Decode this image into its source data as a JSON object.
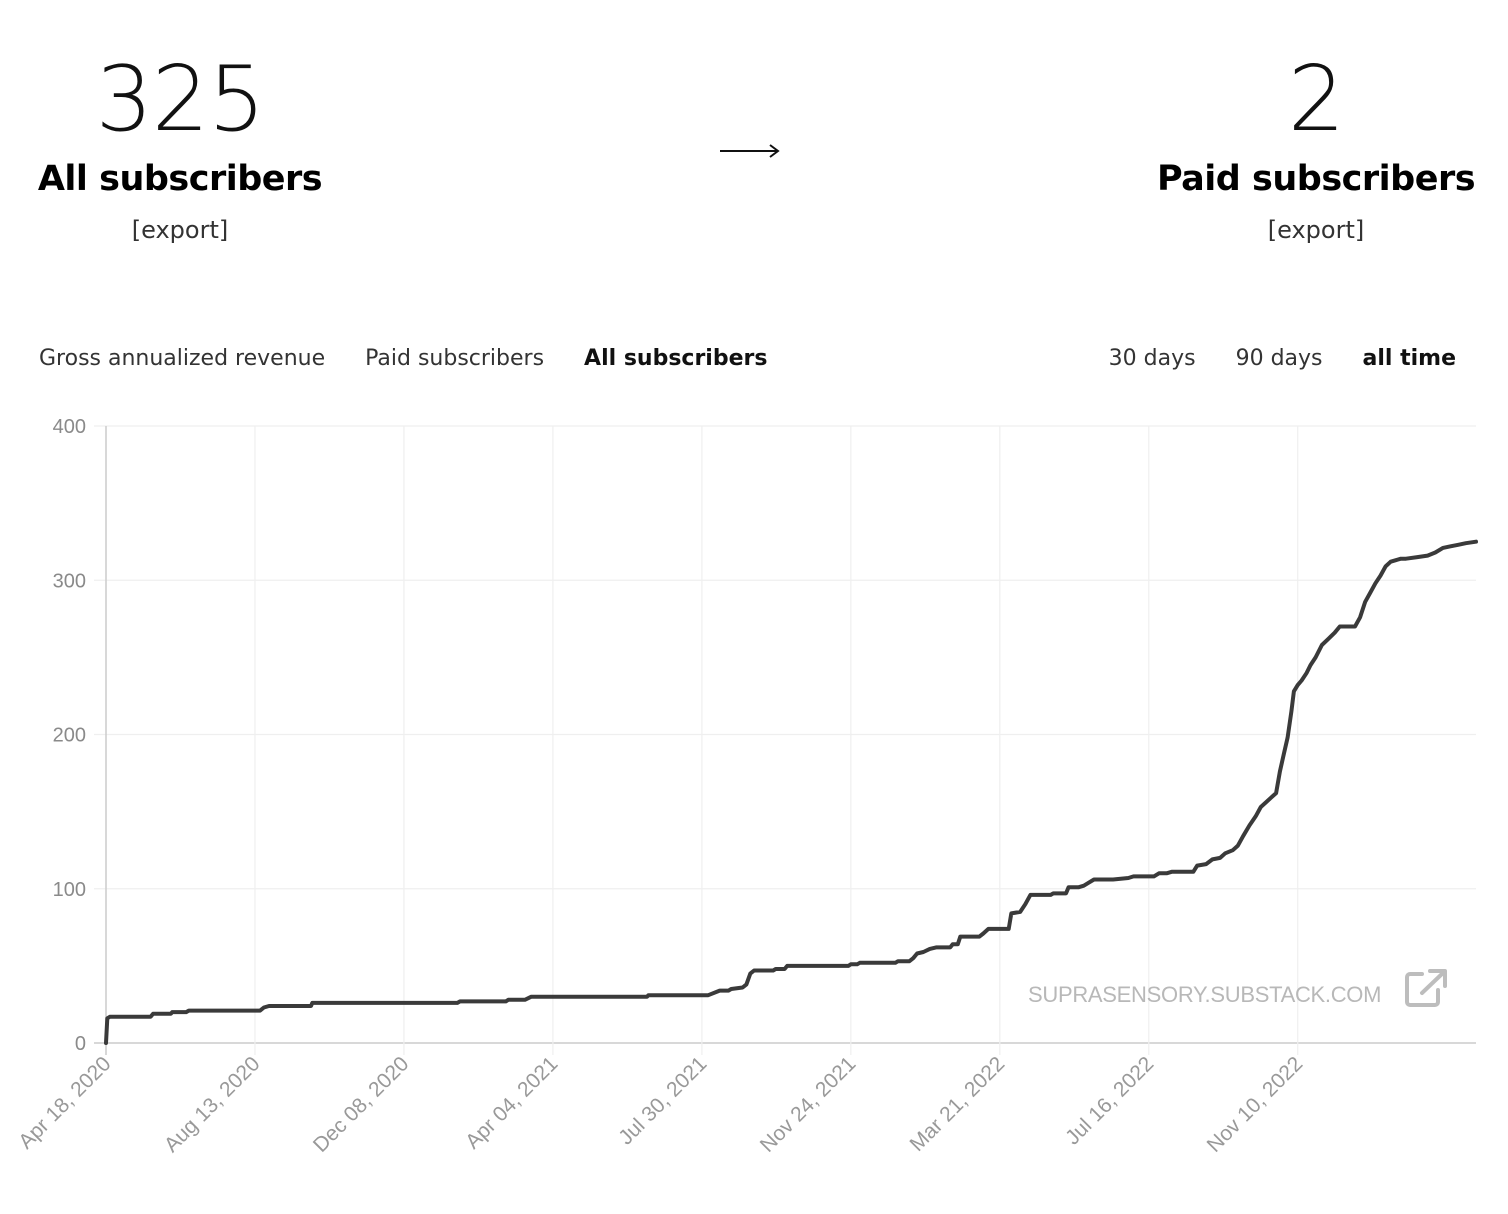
{
  "stats": {
    "all": {
      "number": "325",
      "label": "All subscribers",
      "export": "[export]"
    },
    "paid": {
      "number": "2",
      "label": "Paid subscribers",
      "export": "[export]"
    }
  },
  "metric_tabs": [
    {
      "label": "Gross annualized revenue",
      "active": false
    },
    {
      "label": "Paid subscribers",
      "active": false
    },
    {
      "label": "All subscribers",
      "active": true
    }
  ],
  "range_tabs": [
    {
      "label": "30 days",
      "active": false
    },
    {
      "label": "90 days",
      "active": false
    },
    {
      "label": "all time",
      "active": true
    }
  ],
  "watermark": "SUPRASENSORY.SUBSTACK.COM",
  "icons": {
    "arrow": "right-arrow-icon",
    "external": "external-link-icon"
  },
  "colors": {
    "line": "#3a3a3a",
    "grid": "#efefef",
    "axis": "#cccccc",
    "tick_text": "#999999",
    "watermark": "#b8b8b8"
  },
  "chart_data": {
    "type": "line",
    "x_type": "date",
    "title": "",
    "xlabel": "",
    "ylabel": "",
    "ylim": [
      0,
      400
    ],
    "xlim": [
      "2020-04-18",
      "2023-03-30"
    ],
    "yticks": [
      "0",
      "100",
      "200",
      "300",
      "400"
    ],
    "xticks": [
      {
        "date": "2020-04-18",
        "label": "Apr 18, 2020"
      },
      {
        "date": "2020-08-13",
        "label": "Aug 13, 2020"
      },
      {
        "date": "2020-12-08",
        "label": "Dec 08, 2020"
      },
      {
        "date": "2021-04-04",
        "label": "Apr 04, 2021"
      },
      {
        "date": "2021-07-30",
        "label": "Jul 30, 2021"
      },
      {
        "date": "2021-11-24",
        "label": "Nov 24, 2021"
      },
      {
        "date": "2022-03-21",
        "label": "Mar 21, 2022"
      },
      {
        "date": "2022-07-16",
        "label": "Jul 16, 2022"
      },
      {
        "date": "2022-11-10",
        "label": "Nov 10, 2022"
      }
    ],
    "grid": true,
    "series": [
      {
        "points": [
          [
            "2020-04-18",
            0
          ],
          [
            "2020-04-19",
            16
          ],
          [
            "2020-04-21",
            17
          ],
          [
            "2020-05-23",
            17
          ],
          [
            "2020-05-25",
            19
          ],
          [
            "2020-06-08",
            19
          ],
          [
            "2020-06-09",
            20
          ],
          [
            "2020-06-20",
            20
          ],
          [
            "2020-06-22",
            21
          ],
          [
            "2020-08-17",
            21
          ],
          [
            "2020-08-20",
            23
          ],
          [
            "2020-08-24",
            24
          ],
          [
            "2020-09-26",
            24
          ],
          [
            "2020-09-27",
            26
          ],
          [
            "2021-01-19",
            26
          ],
          [
            "2021-01-21",
            27
          ],
          [
            "2021-02-26",
            27
          ],
          [
            "2021-02-28",
            28
          ],
          [
            "2021-03-13",
            28
          ],
          [
            "2021-03-18",
            30
          ],
          [
            "2021-06-17",
            30
          ],
          [
            "2021-06-18",
            31
          ],
          [
            "2021-08-04",
            31
          ],
          [
            "2021-08-13",
            34
          ],
          [
            "2021-08-20",
            34
          ],
          [
            "2021-08-22",
            35
          ],
          [
            "2021-08-31",
            36
          ],
          [
            "2021-09-03",
            38
          ],
          [
            "2021-09-06",
            45
          ],
          [
            "2021-09-09",
            47
          ],
          [
            "2021-09-24",
            47
          ],
          [
            "2021-09-26",
            48
          ],
          [
            "2021-10-03",
            48
          ],
          [
            "2021-10-05",
            50
          ],
          [
            "2021-11-22",
            50
          ],
          [
            "2021-11-24",
            51
          ],
          [
            "2021-11-29",
            51
          ],
          [
            "2021-12-01",
            52
          ],
          [
            "2021-12-29",
            52
          ],
          [
            "2021-12-31",
            53
          ],
          [
            "2022-01-09",
            53
          ],
          [
            "2022-01-12",
            55
          ],
          [
            "2022-01-15",
            58
          ],
          [
            "2022-01-20",
            59
          ],
          [
            "2022-01-25",
            61
          ],
          [
            "2022-01-30",
            62
          ],
          [
            "2022-02-10",
            62
          ],
          [
            "2022-02-12",
            64
          ],
          [
            "2022-02-16",
            64
          ],
          [
            "2022-02-18",
            69
          ],
          [
            "2022-03-05",
            69
          ],
          [
            "2022-03-08",
            71
          ],
          [
            "2022-03-12",
            74
          ],
          [
            "2022-03-28",
            74
          ],
          [
            "2022-03-30",
            84
          ],
          [
            "2022-04-06",
            85
          ],
          [
            "2022-04-10",
            90
          ],
          [
            "2022-04-14",
            96
          ],
          [
            "2022-04-30",
            96
          ],
          [
            "2022-05-02",
            97
          ],
          [
            "2022-05-12",
            97
          ],
          [
            "2022-05-14",
            101
          ],
          [
            "2022-05-22",
            101
          ],
          [
            "2022-05-26",
            102
          ],
          [
            "2022-05-30",
            104
          ],
          [
            "2022-06-03",
            106
          ],
          [
            "2022-06-18",
            106
          ],
          [
            "2022-06-30",
            107
          ],
          [
            "2022-07-04",
            108
          ],
          [
            "2022-07-20",
            108
          ],
          [
            "2022-07-24",
            110
          ],
          [
            "2022-07-30",
            110
          ],
          [
            "2022-08-03",
            111
          ],
          [
            "2022-08-20",
            111
          ],
          [
            "2022-08-23",
            115
          ],
          [
            "2022-08-30",
            116
          ],
          [
            "2022-09-04",
            119
          ],
          [
            "2022-09-10",
            120
          ],
          [
            "2022-09-14",
            123
          ],
          [
            "2022-09-20",
            125
          ],
          [
            "2022-09-24",
            128
          ],
          [
            "2022-09-28",
            134
          ],
          [
            "2022-10-03",
            141
          ],
          [
            "2022-10-08",
            147
          ],
          [
            "2022-10-12",
            153
          ],
          [
            "2022-10-16",
            156
          ],
          [
            "2022-10-20",
            159
          ],
          [
            "2022-10-24",
            162
          ],
          [
            "2022-10-27",
            176
          ],
          [
            "2022-10-30",
            187
          ],
          [
            "2022-11-02",
            198
          ],
          [
            "2022-11-05",
            215
          ],
          [
            "2022-11-07",
            228
          ],
          [
            "2022-11-10",
            232
          ],
          [
            "2022-11-13",
            235
          ],
          [
            "2022-11-17",
            240
          ],
          [
            "2022-11-20",
            245
          ],
          [
            "2022-11-24",
            250
          ],
          [
            "2022-11-29",
            258
          ],
          [
            "2022-12-04",
            262
          ],
          [
            "2022-12-09",
            266
          ],
          [
            "2022-12-13",
            270
          ],
          [
            "2022-12-17",
            270
          ],
          [
            "2022-12-25",
            270
          ],
          [
            "2022-12-29",
            276
          ],
          [
            "2023-01-02",
            286
          ],
          [
            "2023-01-06",
            292
          ],
          [
            "2023-01-10",
            298
          ],
          [
            "2023-01-14",
            303
          ],
          [
            "2023-01-18",
            309
          ],
          [
            "2023-01-22",
            312
          ],
          [
            "2023-01-26",
            313
          ],
          [
            "2023-01-30",
            314
          ],
          [
            "2023-02-03",
            314
          ],
          [
            "2023-02-12",
            315
          ],
          [
            "2023-02-20",
            316
          ],
          [
            "2023-02-26",
            318
          ],
          [
            "2023-03-04",
            321
          ],
          [
            "2023-03-10",
            322
          ],
          [
            "2023-03-16",
            323
          ],
          [
            "2023-03-22",
            324
          ],
          [
            "2023-03-30",
            325
          ]
        ]
      }
    ]
  }
}
